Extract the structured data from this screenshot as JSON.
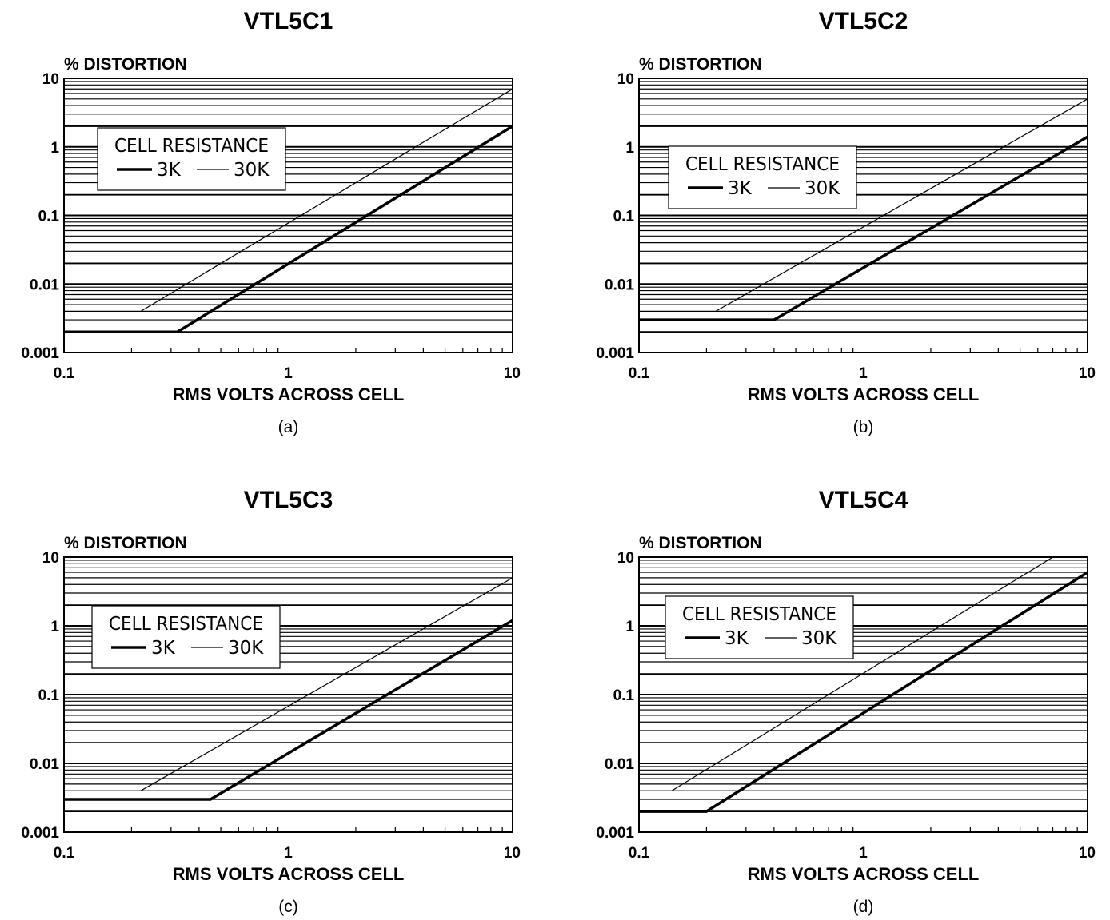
{
  "chart_data": [
    {
      "type": "line",
      "title": "VTL5C1",
      "ylabel": "% DISTORTION",
      "xlabel": "RMS  VOLTS  ACROSS  CELL",
      "caption": "(a)",
      "xscale": "log",
      "yscale": "log",
      "xlim": [
        0.1,
        10
      ],
      "ylim": [
        0.001,
        10
      ],
      "x_ticks": [
        "0.1",
        "1",
        "10"
      ],
      "y_ticks": [
        "0.001",
        "0.01",
        "0.1",
        "1",
        "10"
      ],
      "grid": "horizontal",
      "legend": {
        "title": "CELL RESISTANCE",
        "position": "upper-left"
      },
      "series": [
        {
          "name": "3K",
          "weight": "heavy",
          "points": [
            [
              0.1,
              0.002
            ],
            [
              0.32,
              0.002
            ],
            [
              10,
              2.0
            ]
          ]
        },
        {
          "name": "30K",
          "weight": "light",
          "points": [
            [
              0.22,
              0.004
            ],
            [
              10,
              7.0
            ]
          ]
        }
      ]
    },
    {
      "type": "line",
      "title": "VTL5C2",
      "ylabel": "% DISTORTION",
      "xlabel": "RMS  VOLTS  ACROSS  CELL",
      "caption": "(b)",
      "xscale": "log",
      "yscale": "log",
      "xlim": [
        0.1,
        10
      ],
      "ylim": [
        0.001,
        10
      ],
      "x_ticks": [
        "0.1",
        "1",
        "10"
      ],
      "y_ticks": [
        "0.001",
        "0.01",
        "0.1",
        "1",
        "10"
      ],
      "grid": "horizontal",
      "legend": {
        "title": "CELL RESISTANCE",
        "position": "upper-left"
      },
      "series": [
        {
          "name": "3K",
          "weight": "heavy",
          "points": [
            [
              0.1,
              0.003
            ],
            [
              0.4,
              0.003
            ],
            [
              10,
              1.4
            ]
          ]
        },
        {
          "name": "30K",
          "weight": "light",
          "points": [
            [
              0.22,
              0.004
            ],
            [
              10,
              5.0
            ]
          ]
        }
      ]
    },
    {
      "type": "line",
      "title": "VTL5C3",
      "ylabel": "% DISTORTION",
      "xlabel": "RMS  VOLTS  ACROSS  CELL",
      "caption": "(c)",
      "xscale": "log",
      "yscale": "log",
      "xlim": [
        0.1,
        10
      ],
      "ylim": [
        0.001,
        10
      ],
      "x_ticks": [
        "0.1",
        "1",
        "10"
      ],
      "y_ticks": [
        "0.001",
        "0.01",
        "0.1",
        "1",
        "10"
      ],
      "grid": "horizontal",
      "legend": {
        "title": "CELL RESISTANCE",
        "position": "upper-left"
      },
      "series": [
        {
          "name": "3K",
          "weight": "heavy",
          "points": [
            [
              0.1,
              0.003
            ],
            [
              0.45,
              0.003
            ],
            [
              10,
              1.2
            ]
          ]
        },
        {
          "name": "30K",
          "weight": "light",
          "points": [
            [
              0.22,
              0.004
            ],
            [
              10,
              5.0
            ]
          ]
        }
      ]
    },
    {
      "type": "line",
      "title": "VTL5C4",
      "ylabel": "% DISTORTION",
      "xlabel": "RMS  VOLTS  ACROSS  CELL",
      "caption": "(d)",
      "xscale": "log",
      "yscale": "log",
      "xlim": [
        0.1,
        10
      ],
      "ylim": [
        0.001,
        10
      ],
      "x_ticks": [
        "0.1",
        "1",
        "10"
      ],
      "y_ticks": [
        "0.001",
        "0.01",
        "0.1",
        "1",
        "10"
      ],
      "grid": "horizontal",
      "legend": {
        "title": "CELL RESISTANCE",
        "position": "upper-left"
      },
      "series": [
        {
          "name": "3K",
          "weight": "heavy",
          "points": [
            [
              0.1,
              0.002
            ],
            [
              0.2,
              0.002
            ],
            [
              10,
              6.0
            ]
          ]
        },
        {
          "name": "30K",
          "weight": "light",
          "points": [
            [
              0.14,
              0.004
            ],
            [
              7.0,
              10.0
            ]
          ]
        }
      ]
    }
  ]
}
